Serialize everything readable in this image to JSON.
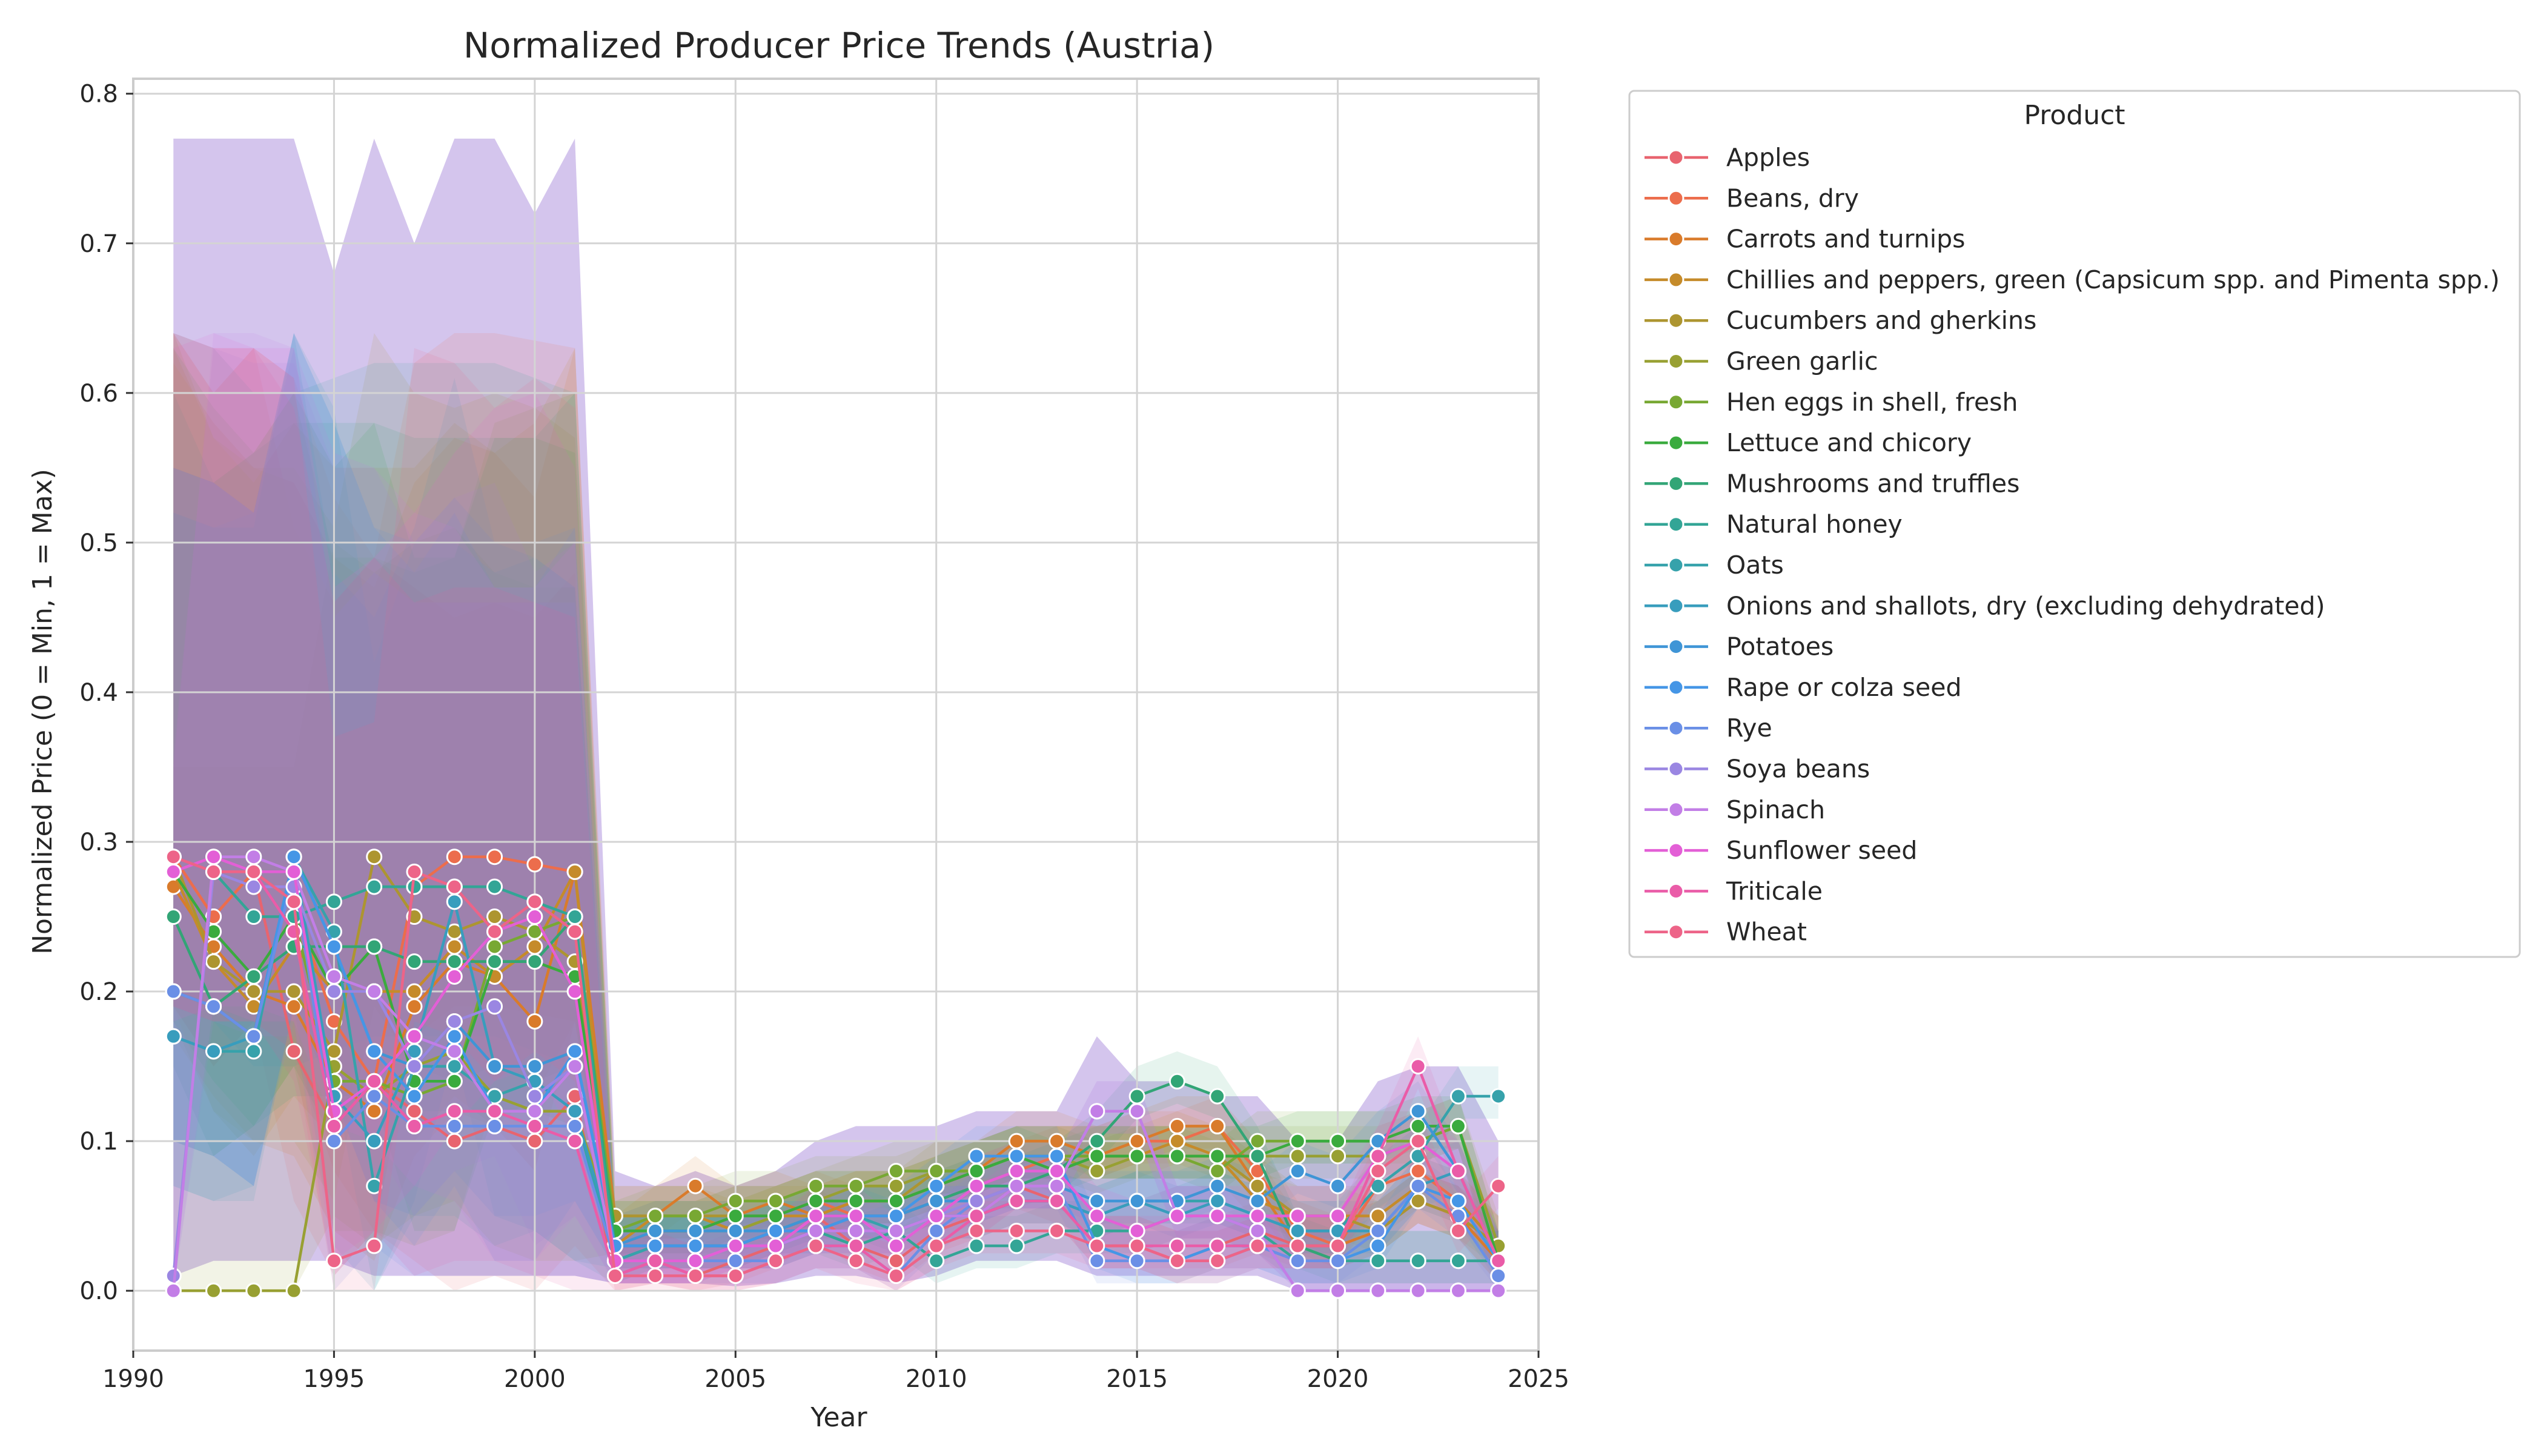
{
  "chart_data": {
    "type": "line",
    "title": "Normalized Producer Price Trends (Austria)",
    "xlabel": "Year",
    "ylabel": "Normalized Price (0 = Min, 1 = Max)",
    "xlim": [
      1990,
      2025
    ],
    "ylim": [
      -0.04,
      0.81
    ],
    "xticks": [
      1990,
      1995,
      2000,
      2005,
      2010,
      2015,
      2020,
      2025
    ],
    "yticks": [
      0.0,
      0.1,
      0.2,
      0.3,
      0.4,
      0.5,
      0.6,
      0.7,
      0.8
    ],
    "grid": true,
    "legend_position": "outside-right",
    "legend_title": "Product",
    "x": [
      1991,
      1992,
      1993,
      1994,
      1995,
      1996,
      1997,
      1998,
      1999,
      2000,
      2001,
      2002,
      2003,
      2004,
      2005,
      2006,
      2007,
      2008,
      2009,
      2010,
      2011,
      2012,
      2013,
      2014,
      2015,
      2016,
      2017,
      2018,
      2019,
      2020,
      2021,
      2022,
      2023,
      2024
    ],
    "series": [
      {
        "name": "Apples",
        "color": "#e8646f",
        "values": [
          0.29,
          0.25,
          0.28,
          0.16,
          0.11,
          0.14,
          0.12,
          0.1,
          0.11,
          0.1,
          0.13,
          0.01,
          0.02,
          0.01,
          0.02,
          0.03,
          0.05,
          0.03,
          0.02,
          0.04,
          0.05,
          0.07,
          0.06,
          0.03,
          0.03,
          0.02,
          0.03,
          0.04,
          0.03,
          0.03,
          0.04,
          0.06,
          0.05,
          0.02
        ]
      },
      {
        "name": "Beans, dry",
        "color": "#ec6d4c",
        "values": [
          0.29,
          0.25,
          0.28,
          0.26,
          0.18,
          0.14,
          0.27,
          0.29,
          0.29,
          0.285,
          0.28,
          0.03,
          0.04,
          0.04,
          0.05,
          0.05,
          0.06,
          0.05,
          0.05,
          0.06,
          0.07,
          0.08,
          0.09,
          0.09,
          0.1,
          0.1,
          0.11,
          0.08,
          0.04,
          0.03,
          0.07,
          0.08,
          0.06,
          0.03
        ]
      },
      {
        "name": "Carrots and turnips",
        "color": "#d97b2b",
        "values": [
          0.27,
          0.23,
          0.2,
          0.19,
          0.14,
          0.12,
          0.19,
          0.22,
          0.21,
          0.18,
          0.28,
          0.05,
          0.05,
          0.07,
          0.05,
          0.06,
          0.05,
          0.06,
          0.06,
          0.07,
          0.08,
          0.1,
          0.1,
          0.09,
          0.1,
          0.11,
          0.11,
          0.07,
          0.03,
          0.03,
          0.04,
          0.06,
          0.05,
          0.02
        ]
      },
      {
        "name": "Chillies and peppers, green (Capsicum spp. and Pimenta spp.)",
        "color": "#c58b2a",
        "values": [
          0.28,
          0.22,
          0.19,
          0.23,
          0.2,
          0.2,
          0.2,
          0.23,
          0.21,
          0.23,
          0.28,
          0.03,
          0.05,
          0.05,
          0.04,
          0.05,
          0.05,
          0.06,
          0.06,
          0.07,
          0.08,
          0.09,
          0.09,
          0.09,
          0.09,
          0.1,
          0.09,
          0.06,
          0.05,
          0.05,
          0.05,
          0.07,
          0.06,
          0.03
        ]
      },
      {
        "name": "Cucumbers and gherkins",
        "color": "#ad9530",
        "values": [
          0.29,
          0.22,
          0.2,
          0.2,
          0.16,
          0.29,
          0.25,
          0.24,
          0.25,
          0.24,
          0.22,
          0.05,
          0.05,
          0.05,
          0.05,
          0.05,
          0.06,
          0.06,
          0.06,
          0.08,
          0.08,
          0.09,
          0.09,
          0.09,
          0.09,
          0.09,
          0.09,
          0.07,
          0.05,
          0.05,
          0.04,
          0.06,
          0.05,
          0.03
        ]
      },
      {
        "name": "Green garlic",
        "color": "#98a032",
        "values": [
          0.0,
          0.0,
          0.0,
          0.0,
          0.15,
          0.13,
          0.15,
          0.16,
          0.13,
          0.12,
          0.12,
          0.04,
          0.04,
          0.04,
          0.04,
          0.05,
          0.06,
          0.07,
          0.07,
          0.08,
          0.08,
          0.09,
          0.09,
          0.08,
          0.09,
          0.09,
          0.09,
          0.09,
          0.09,
          0.09,
          0.09,
          0.1,
          0.11,
          0.03
        ]
      },
      {
        "name": "Hen eggs in shell, fresh",
        "color": "#78a833",
        "values": [
          0.2,
          0.19,
          0.21,
          0.25,
          0.14,
          0.14,
          0.13,
          0.14,
          0.23,
          0.24,
          0.25,
          0.04,
          0.05,
          0.05,
          0.06,
          0.06,
          0.07,
          0.07,
          0.08,
          0.08,
          0.08,
          0.09,
          0.09,
          0.09,
          0.09,
          0.09,
          0.08,
          0.1,
          0.1,
          0.1,
          0.1,
          0.1,
          0.11,
          0.02
        ]
      },
      {
        "name": "Lettuce and chicory",
        "color": "#3aab3e",
        "values": [
          0.28,
          0.24,
          0.21,
          0.25,
          0.2,
          0.23,
          0.14,
          0.14,
          0.22,
          0.22,
          0.21,
          0.04,
          0.04,
          0.04,
          0.05,
          0.05,
          0.06,
          0.06,
          0.06,
          0.07,
          0.08,
          0.09,
          0.08,
          0.09,
          0.09,
          0.09,
          0.09,
          0.09,
          0.1,
          0.1,
          0.1,
          0.11,
          0.11,
          0.02
        ]
      },
      {
        "name": "Mushrooms and truffles",
        "color": "#32a576",
        "values": [
          0.25,
          0.19,
          0.21,
          0.23,
          0.23,
          0.23,
          0.22,
          0.22,
          0.22,
          0.22,
          0.25,
          0.03,
          0.03,
          0.03,
          0.03,
          0.04,
          0.05,
          0.05,
          0.05,
          0.06,
          0.07,
          0.07,
          0.08,
          0.1,
          0.13,
          0.14,
          0.13,
          0.09,
          0.03,
          0.02,
          0.02,
          0.02,
          0.02,
          0.02
        ]
      },
      {
        "name": "Natural honey",
        "color": "#33a596",
        "values": [
          0.29,
          0.28,
          0.25,
          0.25,
          0.26,
          0.27,
          0.27,
          0.27,
          0.27,
          0.26,
          0.25,
          0.02,
          0.03,
          0.03,
          0.03,
          0.03,
          0.04,
          0.03,
          0.04,
          0.02,
          0.03,
          0.03,
          0.04,
          0.04,
          0.04,
          0.05,
          0.05,
          0.04,
          0.02,
          0.02,
          0.02,
          0.02,
          0.02,
          0.02
        ]
      },
      {
        "name": "Oats",
        "color": "#36a2ab",
        "values": [
          0.17,
          0.16,
          0.16,
          0.29,
          0.24,
          0.07,
          0.15,
          0.15,
          0.13,
          0.14,
          0.12,
          0.02,
          0.03,
          0.03,
          0.03,
          0.04,
          0.04,
          0.05,
          0.04,
          0.05,
          0.05,
          0.06,
          0.06,
          0.05,
          0.06,
          0.06,
          0.06,
          0.05,
          0.04,
          0.04,
          0.07,
          0.09,
          0.13,
          0.13
        ]
      },
      {
        "name": "Onions and shallots, dry (excluding dehydrated)",
        "color": "#389dbd",
        "values": [
          0.17,
          0.16,
          0.17,
          0.29,
          0.13,
          0.1,
          0.16,
          0.26,
          0.15,
          0.14,
          0.12,
          0.03,
          0.03,
          0.03,
          0.03,
          0.03,
          0.04,
          0.04,
          0.04,
          0.05,
          0.05,
          0.06,
          0.06,
          0.05,
          0.06,
          0.05,
          0.06,
          0.05,
          0.04,
          0.04,
          0.04,
          0.07,
          0.08,
          0.02
        ]
      },
      {
        "name": "Potatoes",
        "color": "#3f95d6",
        "values": [
          0.2,
          0.19,
          0.17,
          0.29,
          0.23,
          0.16,
          0.15,
          0.18,
          0.15,
          0.15,
          0.16,
          0.03,
          0.04,
          0.04,
          0.04,
          0.04,
          0.05,
          0.05,
          0.05,
          0.06,
          0.06,
          0.07,
          0.07,
          0.06,
          0.06,
          0.06,
          0.07,
          0.06,
          0.08,
          0.07,
          0.1,
          0.12,
          0.08,
          0.02
        ]
      },
      {
        "name": "Rape or colza seed",
        "color": "#4596e6",
        "values": [
          0.2,
          0.19,
          0.17,
          0.29,
          0.23,
          0.16,
          0.13,
          0.17,
          0.12,
          0.12,
          0.16,
          0.03,
          0.03,
          0.03,
          0.03,
          0.04,
          0.04,
          0.05,
          0.05,
          0.07,
          0.09,
          0.09,
          0.09,
          0.03,
          0.02,
          0.02,
          0.03,
          0.03,
          0.02,
          0.02,
          0.03,
          0.07,
          0.06,
          0.02
        ]
      },
      {
        "name": "Rye",
        "color": "#6a8fe6",
        "values": [
          0.2,
          0.19,
          0.17,
          0.28,
          0.1,
          0.13,
          0.11,
          0.11,
          0.11,
          0.11,
          0.11,
          0.02,
          0.02,
          0.02,
          0.02,
          0.02,
          0.03,
          0.03,
          0.01,
          0.04,
          0.06,
          0.07,
          0.07,
          0.02,
          0.02,
          0.02,
          0.02,
          0.03,
          0.02,
          0.02,
          0.04,
          0.07,
          0.05,
          0.01
        ]
      },
      {
        "name": "Soya beans",
        "color": "#9a86e2",
        "values": [
          0.01,
          0.28,
          0.27,
          0.27,
          0.2,
          0.2,
          0.15,
          0.18,
          0.19,
          0.13,
          0.15,
          0.02,
          0.02,
          0.02,
          0.03,
          0.03,
          0.04,
          0.04,
          0.04,
          0.05,
          0.06,
          0.07,
          0.07,
          0.12,
          0.12,
          0.05,
          0.05,
          0.04,
          0.0,
          0.0,
          0.0,
          0.0,
          0.0,
          0.0
        ]
      },
      {
        "name": "Spinach",
        "color": "#c27ee6",
        "values": [
          0.0,
          0.29,
          0.29,
          0.28,
          0.21,
          0.2,
          0.17,
          0.16,
          0.12,
          0.12,
          0.15,
          0.02,
          0.02,
          0.02,
          0.03,
          0.03,
          0.04,
          0.04,
          0.04,
          0.05,
          0.05,
          0.07,
          0.07,
          0.12,
          0.12,
          0.05,
          0.05,
          0.04,
          0.0,
          0.0,
          0.0,
          0.0,
          0.0,
          0.0
        ]
      },
      {
        "name": "Sunflower seed",
        "color": "#e35fd6",
        "values": [
          0.28,
          0.29,
          0.28,
          0.28,
          0.12,
          0.14,
          0.17,
          0.21,
          0.24,
          0.25,
          0.2,
          0.02,
          0.02,
          0.02,
          0.03,
          0.03,
          0.05,
          0.05,
          0.03,
          0.05,
          0.07,
          0.08,
          0.08,
          0.05,
          0.04,
          0.05,
          0.05,
          0.05,
          0.05,
          0.05,
          0.09,
          0.1,
          0.08,
          0.02
        ]
      },
      {
        "name": "Triticale",
        "color": "#ea5ca8",
        "values": [
          0.29,
          0.28,
          0.28,
          0.24,
          0.11,
          0.14,
          0.11,
          0.12,
          0.12,
          0.11,
          0.1,
          0.01,
          0.02,
          0.01,
          0.01,
          0.02,
          0.03,
          0.03,
          0.01,
          0.03,
          0.05,
          0.06,
          0.06,
          0.03,
          0.03,
          0.03,
          0.03,
          0.03,
          0.03,
          0.03,
          0.09,
          0.15,
          0.08,
          0.02
        ]
      },
      {
        "name": "Wheat",
        "color": "#ed6488",
        "values": [
          0.29,
          0.28,
          0.28,
          0.26,
          0.02,
          0.03,
          0.28,
          0.27,
          0.24,
          0.26,
          0.24,
          0.01,
          0.01,
          0.01,
          0.01,
          0.02,
          0.03,
          0.02,
          0.01,
          0.03,
          0.04,
          0.04,
          0.04,
          0.03,
          0.03,
          0.02,
          0.02,
          0.03,
          0.03,
          0.03,
          0.08,
          0.1,
          0.04,
          0.07
        ]
      }
    ],
    "confidence_band_extent": {
      "upper": [
        0.77,
        0.77,
        0.77,
        0.77,
        0.68,
        0.77,
        0.7,
        0.77,
        0.77,
        0.72,
        0.77,
        0.08,
        0.07,
        0.08,
        0.07,
        0.08,
        0.1,
        0.11,
        0.11,
        0.11,
        0.12,
        0.12,
        0.12,
        0.17,
        0.14,
        0.14,
        0.13,
        0.13,
        0.1,
        0.1,
        0.14,
        0.15,
        0.15,
        0.1
      ],
      "lower": [
        0.01,
        0.02,
        0.02,
        0.02,
        0.02,
        0.01,
        0.01,
        0.01,
        0.01,
        0.01,
        0.01,
        0.005,
        0.005,
        0.005,
        0.003,
        0.005,
        0.01,
        0.01,
        0.005,
        0.01,
        0.02,
        0.02,
        0.02,
        0.01,
        0.01,
        0.01,
        0.01,
        0.01,
        0.0,
        0.0,
        0.0,
        0.0,
        0.0,
        0.0
      ]
    }
  }
}
